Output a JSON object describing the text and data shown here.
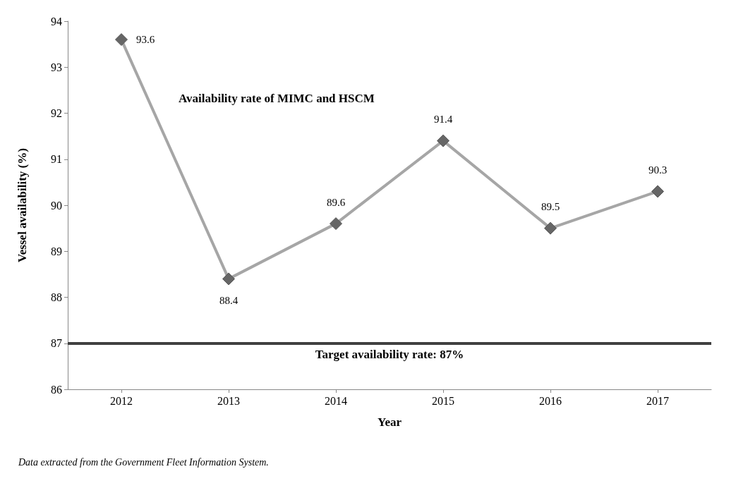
{
  "chart_data": {
    "type": "line",
    "title": "Availability rate of MIMC and HSCM",
    "xlabel": "Year",
    "ylabel": "Vessel availability (%)",
    "categories": [
      "2012",
      "2013",
      "2014",
      "2015",
      "2016",
      "2017"
    ],
    "series": [
      {
        "color": "#a6a6a6",
        "values": [
          93.6,
          88.4,
          89.6,
          91.4,
          89.5,
          90.3
        ]
      }
    ],
    "ylim": [
      86,
      94
    ],
    "yticks": [
      86,
      87,
      88,
      89,
      90,
      91,
      92,
      93,
      94
    ],
    "ref_lines": [
      {
        "axis": "y",
        "value": 87,
        "label": "Target availability rate: 87%",
        "color": "#404040",
        "line_style": "solid"
      }
    ],
    "annotations": [
      "Data extracted from the Government Fleet Information System."
    ],
    "data_labels": true,
    "marker": "diamond",
    "line_style": "solid",
    "grid": false
  }
}
